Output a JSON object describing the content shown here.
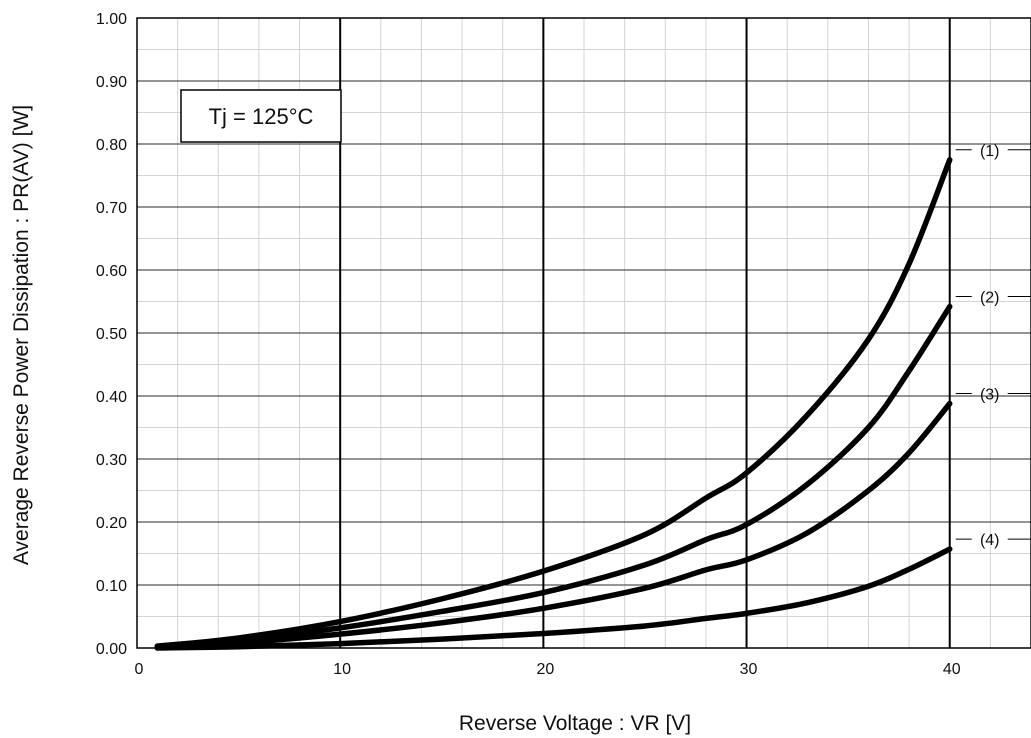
{
  "chart_data": {
    "type": "line",
    "title": "",
    "xlabel": "Reverse Voltage : VR [V]",
    "ylabel": "Average Reverse Power Dissipation : PR(AV) [W]",
    "xlim": [
      0,
      44
    ],
    "ylim": [
      0,
      1.0
    ],
    "x_ticks": [
      0,
      10,
      20,
      30,
      40
    ],
    "x_tick_labels": [
      "0",
      "10",
      "20",
      "30",
      "40"
    ],
    "y_ticks": [
      0,
      0.1,
      0.2,
      0.3,
      0.4,
      0.5,
      0.6,
      0.7,
      0.8,
      0.9,
      1.0
    ],
    "y_tick_labels": [
      "0.00",
      "0.10",
      "0.20",
      "0.30",
      "0.40",
      "0.50",
      "0.60",
      "0.70",
      "0.80",
      "0.90",
      "1.00"
    ],
    "grid": true,
    "annotation": "Tj = 125°C",
    "series": [
      {
        "name": "(1)",
        "x": [
          1,
          5,
          10,
          15,
          20,
          25,
          28,
          30,
          33,
          36,
          38,
          40
        ],
        "y": [
          0.003,
          0.016,
          0.042,
          0.078,
          0.122,
          0.18,
          0.238,
          0.278,
          0.37,
          0.49,
          0.61,
          0.775
        ]
      },
      {
        "name": "(2)",
        "x": [
          1,
          5,
          10,
          15,
          20,
          25,
          28,
          30,
          33,
          36,
          38,
          40
        ],
        "y": [
          0.002,
          0.012,
          0.032,
          0.058,
          0.088,
          0.132,
          0.172,
          0.196,
          0.26,
          0.35,
          0.44,
          0.542
        ]
      },
      {
        "name": "(3)",
        "x": [
          1,
          5,
          10,
          15,
          20,
          25,
          28,
          30,
          33,
          36,
          38,
          40
        ],
        "y": [
          0.001,
          0.008,
          0.022,
          0.04,
          0.063,
          0.095,
          0.124,
          0.14,
          0.183,
          0.25,
          0.31,
          0.388
        ]
      },
      {
        "name": "(4)",
        "x": [
          1,
          5,
          10,
          15,
          20,
          25,
          28,
          30,
          33,
          36,
          38,
          40
        ],
        "y": [
          0.0,
          0.002,
          0.007,
          0.014,
          0.023,
          0.035,
          0.047,
          0.055,
          0.072,
          0.098,
          0.125,
          0.157
        ]
      }
    ]
  }
}
